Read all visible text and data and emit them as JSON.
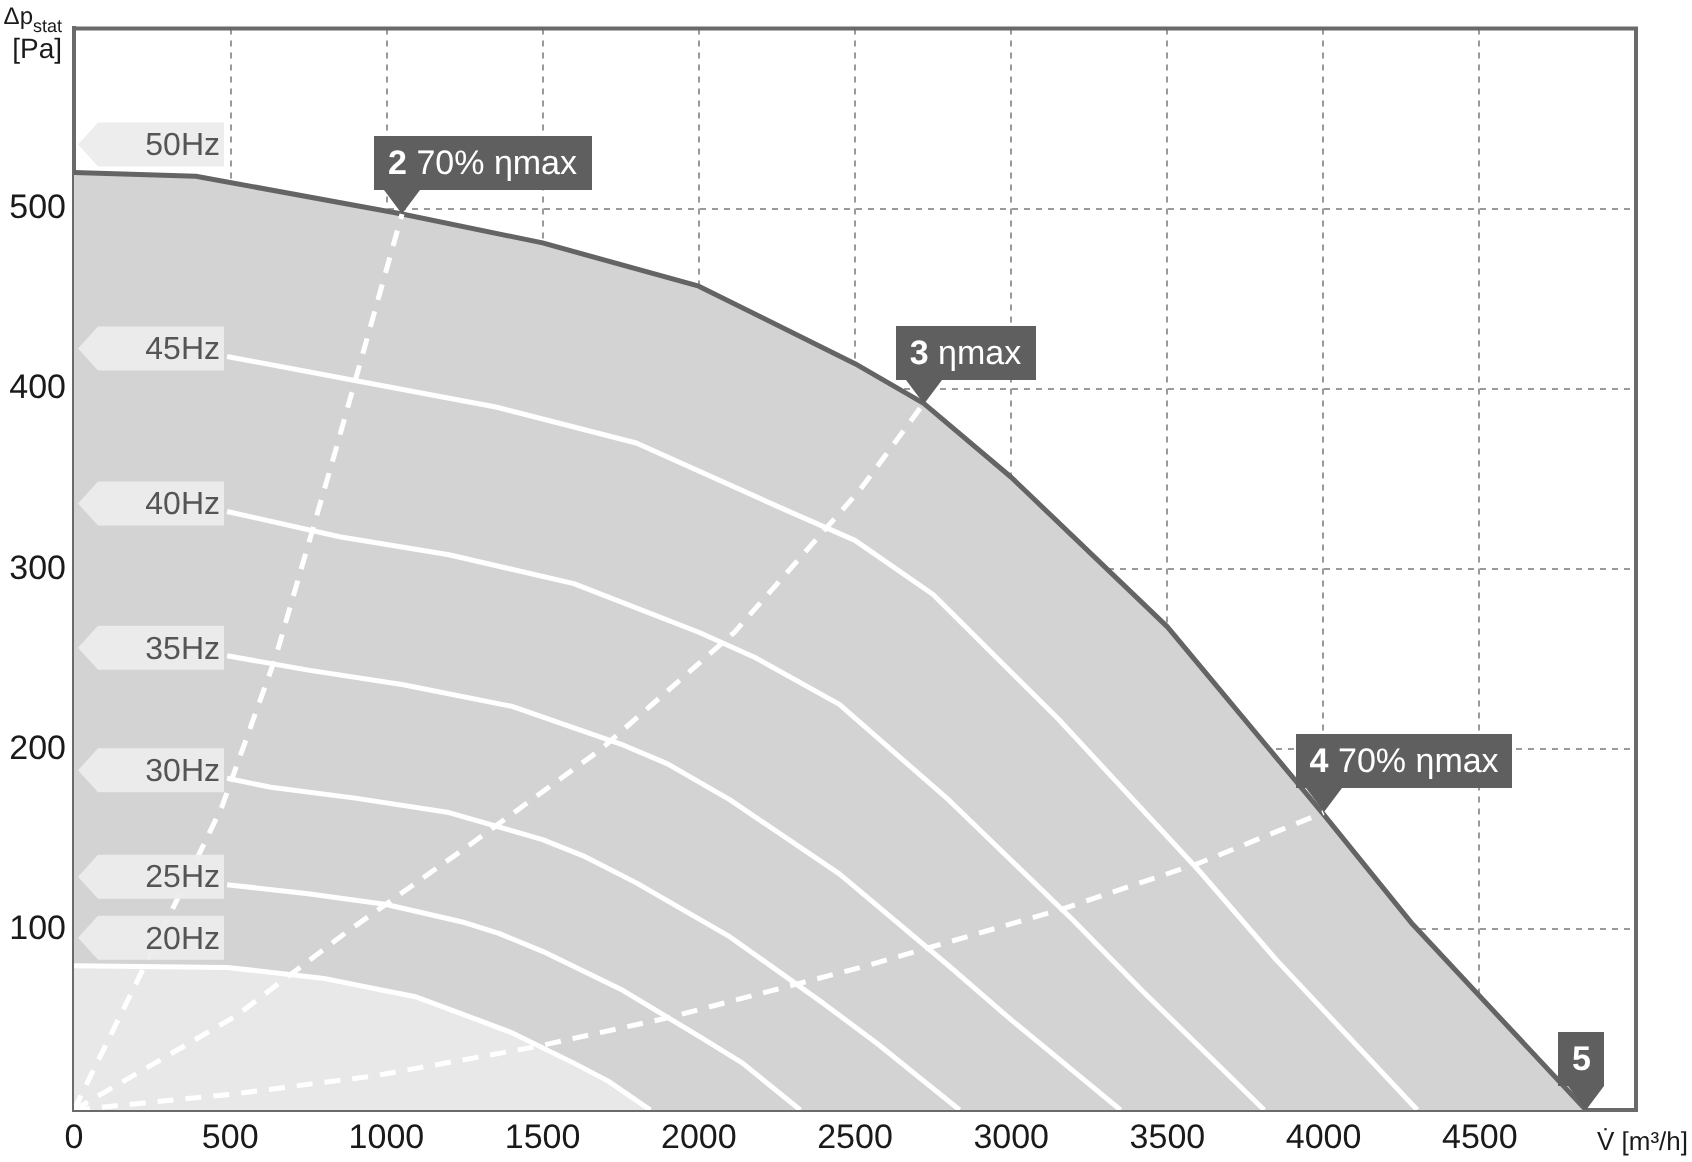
{
  "chart_data": {
    "type": "line",
    "xlabel": "V̇ [m³/h]",
    "ylabel": "Δp$_{stat}$ [Pa]",
    "xlim": [
      0,
      5000
    ],
    "ylim": [
      0,
      600
    ],
    "xticks": [
      0,
      500,
      1000,
      1500,
      2000,
      2500,
      3000,
      3500,
      4000,
      4500,
      {
        "value": 5000,
        "label": null
      }
    ],
    "yticks": [
      {
        "value": 0,
        "label": null
      },
      100,
      200,
      300,
      400,
      500,
      {
        "value": 600,
        "label": null
      }
    ],
    "grid": true,
    "legend": "left",
    "marker": "none",
    "line_style": "solid",
    "series": [
      {
        "name": "50Hz",
        "type": "area",
        "color": "#d3d3d3",
        "x": [
          0,
          390,
          1050,
          1500,
          2000,
          2500,
          2720,
          3000,
          3500,
          4000,
          4285,
          4840
        ],
        "values": [
          520,
          518,
          497,
          481,
          457,
          414,
          392,
          351,
          268,
          164,
          103,
          0
        ]
      },
      {
        "name": "45Hz",
        "color": "#ffffff",
        "x": [
          490,
          950,
          1350,
          1800,
          2250,
          2500,
          2750,
          3150,
          3600,
          3850,
          4300
        ],
        "values": [
          418,
          403,
          390,
          370,
          335,
          316,
          286,
          217,
          133,
          83,
          0
        ]
      },
      {
        "name": "40Hz",
        "color": "#ffffff",
        "x": [
          490,
          850,
          1200,
          1600,
          2000,
          2180,
          2450,
          2800,
          3200,
          3420,
          3810
        ],
        "values": [
          332,
          318,
          308,
          292,
          265,
          251,
          225,
          172,
          105,
          66,
          0
        ]
      },
      {
        "name": "35Hz",
        "color": "#ffffff",
        "x": [
          490,
          750,
          1050,
          1400,
          1750,
          1900,
          2100,
          2450,
          2800,
          3000,
          3350
        ],
        "values": [
          252,
          244,
          236,
          224,
          203,
          192,
          172,
          131,
          80,
          50,
          0
        ]
      },
      {
        "name": "30Hz",
        "color": "#ffffff",
        "x": [
          490,
          630,
          900,
          1200,
          1500,
          1630,
          1800,
          2100,
          2400,
          2570,
          2835
        ],
        "values": [
          184,
          179,
          173,
          165,
          150,
          141,
          126,
          96,
          59,
          37,
          0
        ]
      },
      {
        "name": "25Hz",
        "color": "#ffffff",
        "x": [
          490,
          750,
          1000,
          1250,
          1360,
          1500,
          1750,
          2000,
          2140,
          2325
        ],
        "values": [
          125,
          120,
          114,
          104,
          98,
          88,
          67,
          41,
          26,
          0
        ]
      },
      {
        "name": "20Hz",
        "type": "area",
        "color": "#e8e8e8",
        "x": [
          0,
          490,
          600,
          800,
          1000,
          1090,
          1200,
          1400,
          1600,
          1710,
          1845
        ],
        "values": [
          80,
          79,
          77,
          73,
          66,
          63,
          56,
          43,
          26,
          16,
          0
        ]
      },
      {
        "color": "#ffffff",
        "line_style": "dashed",
        "x": [
          0,
          45,
          198,
          300,
          473,
          645,
          836,
          1050
        ],
        "values": [
          0,
          16,
          70,
          106,
          168,
          251,
          365,
          497
        ]
      },
      {
        "color": "#ffffff",
        "line_style": "dashed",
        "x": [
          0,
          517,
          875,
          1258,
          1686,
          2114,
          2516,
          2720
        ],
        "values": [
          0,
          52,
          99,
          146,
          200,
          265,
          344,
          392
        ]
      },
      {
        "color": "#ffffff",
        "line_style": "dashed",
        "x": [
          0,
          517,
          964,
          1475,
          1897,
          2516,
          3155,
          3602,
          4000
        ],
        "values": [
          0,
          9,
          19,
          35,
          51,
          79,
          111,
          137,
          165
        ]
      }
    ],
    "annotations": [
      {
        "text": "2 70% ηmax",
        "x": 1050,
        "y": 497
      },
      {
        "text": "3 ηmax",
        "x": 2720,
        "y": 392
      },
      {
        "text": "4 70% ηmax",
        "x": 4000,
        "y": 165
      },
      {
        "text": "5",
        "x": 4840,
        "y": 0
      }
    ]
  }
}
